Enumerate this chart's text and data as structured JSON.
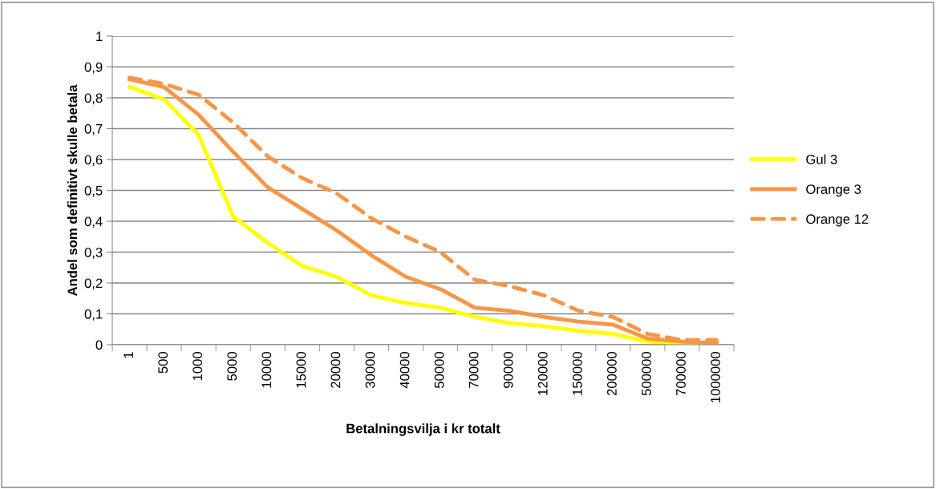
{
  "chart_data": {
    "type": "line",
    "xlabel": "Betalningsvilja i kr totalt",
    "ylabel": "Andel som definitivt skulle betala",
    "categories": [
      "1",
      "500",
      "1000",
      "5000",
      "10000",
      "15000",
      "20000",
      "30000",
      "40000",
      "50000",
      "70000",
      "90000",
      "120000",
      "150000",
      "200000",
      "500000",
      "700000",
      "1000000"
    ],
    "series": [
      {
        "name": "Gul 3",
        "color": "#ffff00",
        "line_style": "solid",
        "values": [
          0.835,
          0.795,
          0.68,
          0.415,
          0.33,
          0.255,
          0.22,
          0.16,
          0.135,
          0.12,
          0.09,
          0.07,
          0.06,
          0.045,
          0.035,
          0.01,
          0.005,
          0.002
        ]
      },
      {
        "name": "Orange 3",
        "color": "#f79646",
        "line_style": "solid",
        "values": [
          0.86,
          0.835,
          0.745,
          0.625,
          0.51,
          0.44,
          0.37,
          0.29,
          0.22,
          0.18,
          0.12,
          0.11,
          0.09,
          0.075,
          0.065,
          0.02,
          0.01,
          0.005
        ]
      },
      {
        "name": "Orange 12",
        "color": "#f79646",
        "line_style": "dashed",
        "values": [
          0.865,
          0.845,
          0.81,
          0.72,
          0.61,
          0.54,
          0.49,
          0.41,
          0.35,
          0.3,
          0.21,
          0.19,
          0.16,
          0.11,
          0.09,
          0.035,
          0.015,
          0.015
        ]
      }
    ],
    "ylim": [
      0,
      1
    ],
    "yticks": [
      {
        "value": 0,
        "label": "0"
      },
      {
        "value": 0.1,
        "label": "0,1"
      },
      {
        "value": 0.2,
        "label": "0,2"
      },
      {
        "value": 0.3,
        "label": "0,3"
      },
      {
        "value": 0.4,
        "label": "0,4"
      },
      {
        "value": 0.5,
        "label": "0,5"
      },
      {
        "value": 0.6,
        "label": "0,6"
      },
      {
        "value": 0.7,
        "label": "0,7"
      },
      {
        "value": 0.8,
        "label": "0,8"
      },
      {
        "value": 0.9,
        "label": "0,9"
      },
      {
        "value": 1,
        "label": "1"
      }
    ],
    "grid": "y",
    "legend": "right",
    "marker": "none"
  }
}
